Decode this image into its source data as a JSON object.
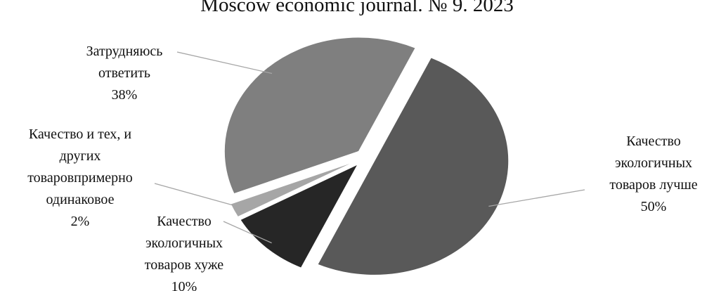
{
  "header": {
    "journal_line": "Moscow economic journal. № 9. 2023"
  },
  "chart_data": {
    "type": "pie",
    "title": "",
    "exploded": true,
    "legend": "none",
    "slices": [
      {
        "label_lines": [
          "Качество",
          "экологичных",
          "товаров лучше"
        ],
        "value": 50,
        "value_label": "50%",
        "color": "#595959"
      },
      {
        "label_lines": [
          "Качество",
          "экологичных",
          "товаров хуже"
        ],
        "value": 10,
        "value_label": "10%",
        "color": "#262626"
      },
      {
        "label_lines": [
          "Качество и тех, и",
          "других",
          "товаровпримерно",
          "одинаковое"
        ],
        "value": 2,
        "value_label": "2%",
        "color": "#a6a6a6"
      },
      {
        "label_lines": [
          "Затрудняюсь",
          "ответить"
        ],
        "value": 38,
        "value_label": "38%",
        "color": "#7f7f7f"
      }
    ]
  }
}
